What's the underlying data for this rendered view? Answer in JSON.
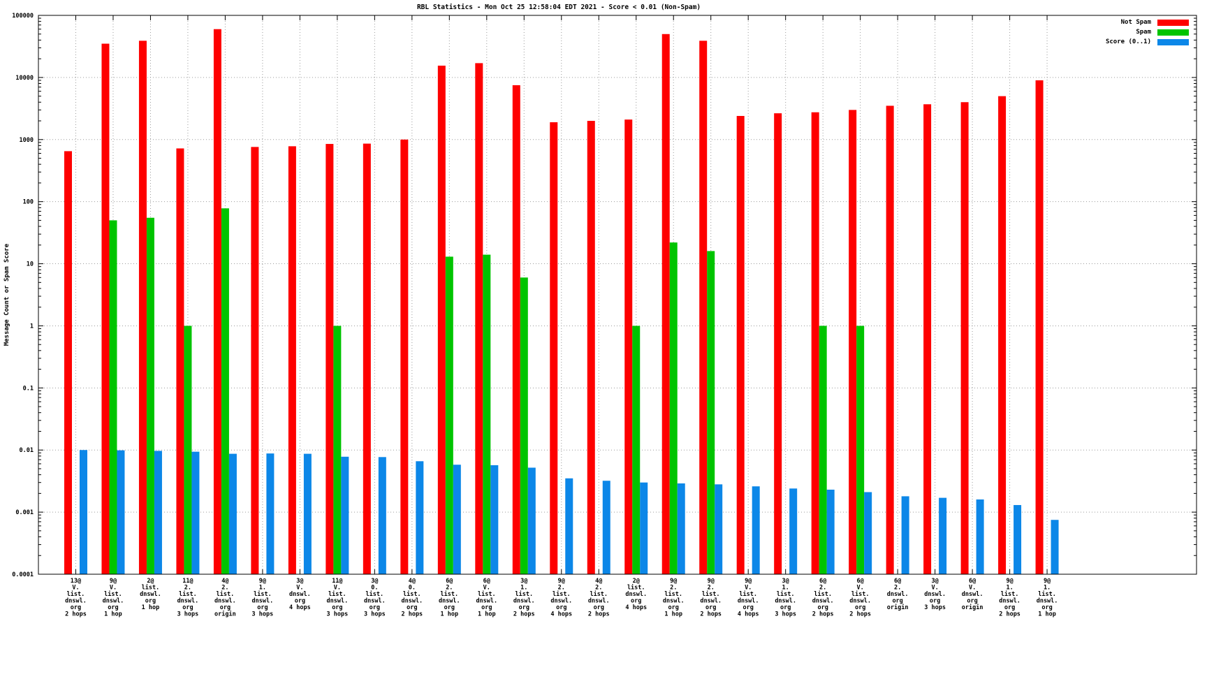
{
  "title": "RBL Statistics - Mon Oct 25 12:58:04 EDT 2021 - Score < 0.01 (Non-Spam)",
  "y_axis_label": "Message Count or Spam Score",
  "legend": [
    {
      "label": "Not Spam",
      "color": "#fe0000"
    },
    {
      "label": "Spam",
      "color": "#00c400"
    },
    {
      "label": "Score (0..1)",
      "color": "#0c87e8"
    }
  ],
  "chart_data": {
    "type": "bar",
    "y_scale": "log",
    "ylim": [
      0.0001,
      100000
    ],
    "y_ticks": [
      "100000",
      "10000",
      "1000",
      "100",
      "10",
      "1",
      "0.1",
      "0.01",
      "0.001",
      "0.0001"
    ],
    "grid": true,
    "legend_position": "top-right",
    "x_slot_count": 31,
    "colors": {
      "not_spam": "#fe0000",
      "spam": "#00c400",
      "score": "#0c87e8"
    },
    "series_names": [
      "Not Spam",
      "Spam",
      "Score (0..1)"
    ],
    "groups": [
      {
        "label": [
          "13@",
          "V.",
          "list.",
          "dnswl.",
          "org",
          "2 hops"
        ],
        "not_spam": 650,
        "spam": null,
        "score": 0.01
      },
      {
        "label": [
          "9@",
          "V.",
          "list.",
          "dnswl.",
          "org",
          "1 hop"
        ],
        "not_spam": 35000,
        "spam": 50,
        "score": 0.0099
      },
      {
        "label": [
          "2@",
          "list.",
          "dnswl.",
          "org",
          "1 hop"
        ],
        "not_spam": 39000,
        "spam": 55,
        "score": 0.0097
      },
      {
        "label": [
          "11@",
          "2.",
          "list.",
          "dnswl.",
          "org",
          "3 hops"
        ],
        "not_spam": 720,
        "spam": 1.0,
        "score": 0.0094
      },
      {
        "label": [
          "4@",
          "2.",
          "list.",
          "dnswl.",
          "org",
          "origin"
        ],
        "not_spam": 60000,
        "spam": 78,
        "score": 0.0087
      },
      {
        "label": [
          "9@",
          "1.",
          "list.",
          "dnswl.",
          "org",
          "3 hops"
        ],
        "not_spam": 760,
        "spam": null,
        "score": 0.0088
      },
      {
        "label": [
          "3@",
          "V.",
          "dnswl.",
          "org",
          "4 hops"
        ],
        "not_spam": 780,
        "spam": null,
        "score": 0.0087
      },
      {
        "label": [
          "11@",
          "V.",
          "list.",
          "dnswl.",
          "org",
          "3 hops"
        ],
        "not_spam": 850,
        "spam": 1.0,
        "score": 0.0078
      },
      {
        "label": [
          "3@",
          "0.",
          "list.",
          "dnswl.",
          "org",
          "3 hops"
        ],
        "not_spam": 860,
        "spam": null,
        "score": 0.0077
      },
      {
        "label": [
          "4@",
          "0.",
          "list.",
          "dnswl.",
          "org",
          "2 hops"
        ],
        "not_spam": 1000,
        "spam": null,
        "score": 0.0066
      },
      {
        "label": [
          "6@",
          "2.",
          "list.",
          "dnswl.",
          "org",
          "1 hop"
        ],
        "not_spam": 15500,
        "spam": 13,
        "score": 0.0058
      },
      {
        "label": [
          "6@",
          "V.",
          "list.",
          "dnswl.",
          "org",
          "1 hop"
        ],
        "not_spam": 17000,
        "spam": 14,
        "score": 0.0057
      },
      {
        "label": [
          "3@",
          "1.",
          "list.",
          "dnswl.",
          "org",
          "2 hops"
        ],
        "not_spam": 7500,
        "spam": 6.0,
        "score": 0.0052
      },
      {
        "label": [
          "9@",
          "2.",
          "list.",
          "dnswl.",
          "org",
          "4 hops"
        ],
        "not_spam": 1900,
        "spam": null,
        "score": 0.0035
      },
      {
        "label": [
          "4@",
          "2.",
          "list.",
          "dnswl.",
          "org",
          "2 hops"
        ],
        "not_spam": 2000,
        "spam": null,
        "score": 0.0032
      },
      {
        "label": [
          "2@",
          "list.",
          "dnswl.",
          "org",
          "4 hops"
        ],
        "not_spam": 2100,
        "spam": 1.0,
        "score": 0.003
      },
      {
        "label": [
          "9@",
          "2.",
          "list.",
          "dnswl.",
          "org",
          "1 hop"
        ],
        "not_spam": 50000,
        "spam": 22,
        "score": 0.0029
      },
      {
        "label": [
          "9@",
          "2.",
          "list.",
          "dnswl.",
          "org",
          "2 hops"
        ],
        "not_spam": 39000,
        "spam": 16,
        "score": 0.0028
      },
      {
        "label": [
          "9@",
          "V.",
          "list.",
          "dnswl.",
          "org",
          "4 hops"
        ],
        "not_spam": 2400,
        "spam": null,
        "score": 0.0026
      },
      {
        "label": [
          "3@",
          "1.",
          "list.",
          "dnswl.",
          "org",
          "3 hops"
        ],
        "not_spam": 2650,
        "spam": null,
        "score": 0.0024
      },
      {
        "label": [
          "6@",
          "2.",
          "list.",
          "dnswl.",
          "org",
          "2 hops"
        ],
        "not_spam": 2750,
        "spam": 1.0,
        "score": 0.0023
      },
      {
        "label": [
          "6@",
          "V.",
          "list.",
          "dnswl.",
          "org",
          "2 hops"
        ],
        "not_spam": 3000,
        "spam": 1.0,
        "score": 0.0021
      },
      {
        "label": [
          "6@",
          "2.",
          "dnswl.",
          "org",
          "origin"
        ],
        "not_spam": 3500,
        "spam": null,
        "score": 0.0018
      },
      {
        "label": [
          "3@",
          "V.",
          "dnswl.",
          "org",
          "3 hops"
        ],
        "not_spam": 3700,
        "spam": null,
        "score": 0.0017
      },
      {
        "label": [
          "6@",
          "V.",
          "dnswl.",
          "org",
          "origin"
        ],
        "not_spam": 4000,
        "spam": null,
        "score": 0.0016
      },
      {
        "label": [
          "9@",
          "1.",
          "list.",
          "dnswl.",
          "org",
          "2 hops"
        ],
        "not_spam": 5000,
        "spam": null,
        "score": 0.0013
      },
      {
        "label": [
          "9@",
          "1.",
          "list.",
          "dnswl.",
          "org",
          "1 hop"
        ],
        "not_spam": 9000,
        "spam": null,
        "score": 0.00075
      }
    ]
  }
}
